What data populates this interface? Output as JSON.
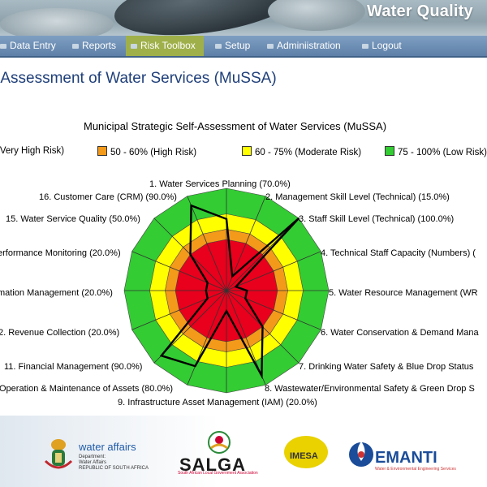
{
  "header": {
    "title": "Water Quality"
  },
  "nav": {
    "items": [
      {
        "label": "Data Entry",
        "active": false
      },
      {
        "label": "Reports",
        "active": false
      },
      {
        "label": "Risk Toolbox",
        "active": true
      },
      {
        "label": "Setup",
        "active": false
      },
      {
        "label": "Adminiistration",
        "active": false
      },
      {
        "label": "Logout",
        "active": false
      }
    ]
  },
  "page": {
    "title": "-Assessment of Water Services (MuSSA)"
  },
  "chart_data": {
    "type": "radar",
    "title": "Municipal Strategic Self-Assessment of Water Services (MuSSA)",
    "legend": [
      {
        "label": "(Very High Risk)",
        "color": "#e8001c"
      },
      {
        "label": "50 - 60% (High Risk)",
        "color": "#f39a1a"
      },
      {
        "label": "60 - 75% (Moderate Risk)",
        "color": "#ffff00"
      },
      {
        "label": "75 - 100% (Low Risk)",
        "color": "#33cc33"
      }
    ],
    "bands": [
      {
        "from": 0,
        "to": 50,
        "color": "#e8001c"
      },
      {
        "from": 50,
        "to": 60,
        "color": "#f39a1a"
      },
      {
        "from": 60,
        "to": 75,
        "color": "#ffff00"
      },
      {
        "from": 75,
        "to": 100,
        "color": "#33cc33"
      }
    ],
    "series_color": "#000000",
    "axes": [
      {
        "label": "1. Water Services Planning (70.0%)",
        "value": 70
      },
      {
        "label": "2. Management Skill Level (Technical) (15.0%)",
        "value": 15
      },
      {
        "label": "3. Staff Skill Level (Technical) (100.0%)",
        "value": 100
      },
      {
        "label": "4. Technical Staff Capacity (Numbers) (",
        "value": 10
      },
      {
        "label": "5. Water Resource Management (WR",
        "value": 20
      },
      {
        "label": "6. Water Conservation & Demand Mana",
        "value": 20
      },
      {
        "label": "7. Drinking Water Safety & Blue Drop Status",
        "value": 50
      },
      {
        "label": "8. Wastewater/Environmental Safety & Green Drop S",
        "value": 90
      },
      {
        "label": "9. Infrastructure Asset Management (IAM) (20.0%)",
        "value": 20
      },
      {
        "label": "Operation & Maintenance of Assets (80.0%)",
        "value": 80
      },
      {
        "label": "11. Financial Management (90.0%)",
        "value": 90
      },
      {
        "label": "2. Revenue Collection (20.0%)",
        "value": 20
      },
      {
        "label": "mation Management (20.0%)",
        "value": 20
      },
      {
        "label": "erformance Monitoring (20.0%)",
        "value": 20
      },
      {
        "label": "15. Water Service Quality (50.0%)",
        "value": 50
      },
      {
        "label": "16. Customer Care (CRM) (90.0%)",
        "value": 90
      }
    ]
  },
  "footer": {
    "water_affairs": "water affairs",
    "wa_sub1": "Department:",
    "wa_sub2": "Water Affairs",
    "wa_sub3": "REPUBLIC OF SOUTH AFRICA",
    "salga": "SALGA",
    "salga_sub": "South African Local Government Association",
    "imesa": "IMESA",
    "emanti": "EMANTI",
    "emanti_sub": "Water & Environmental Engineering Services"
  }
}
